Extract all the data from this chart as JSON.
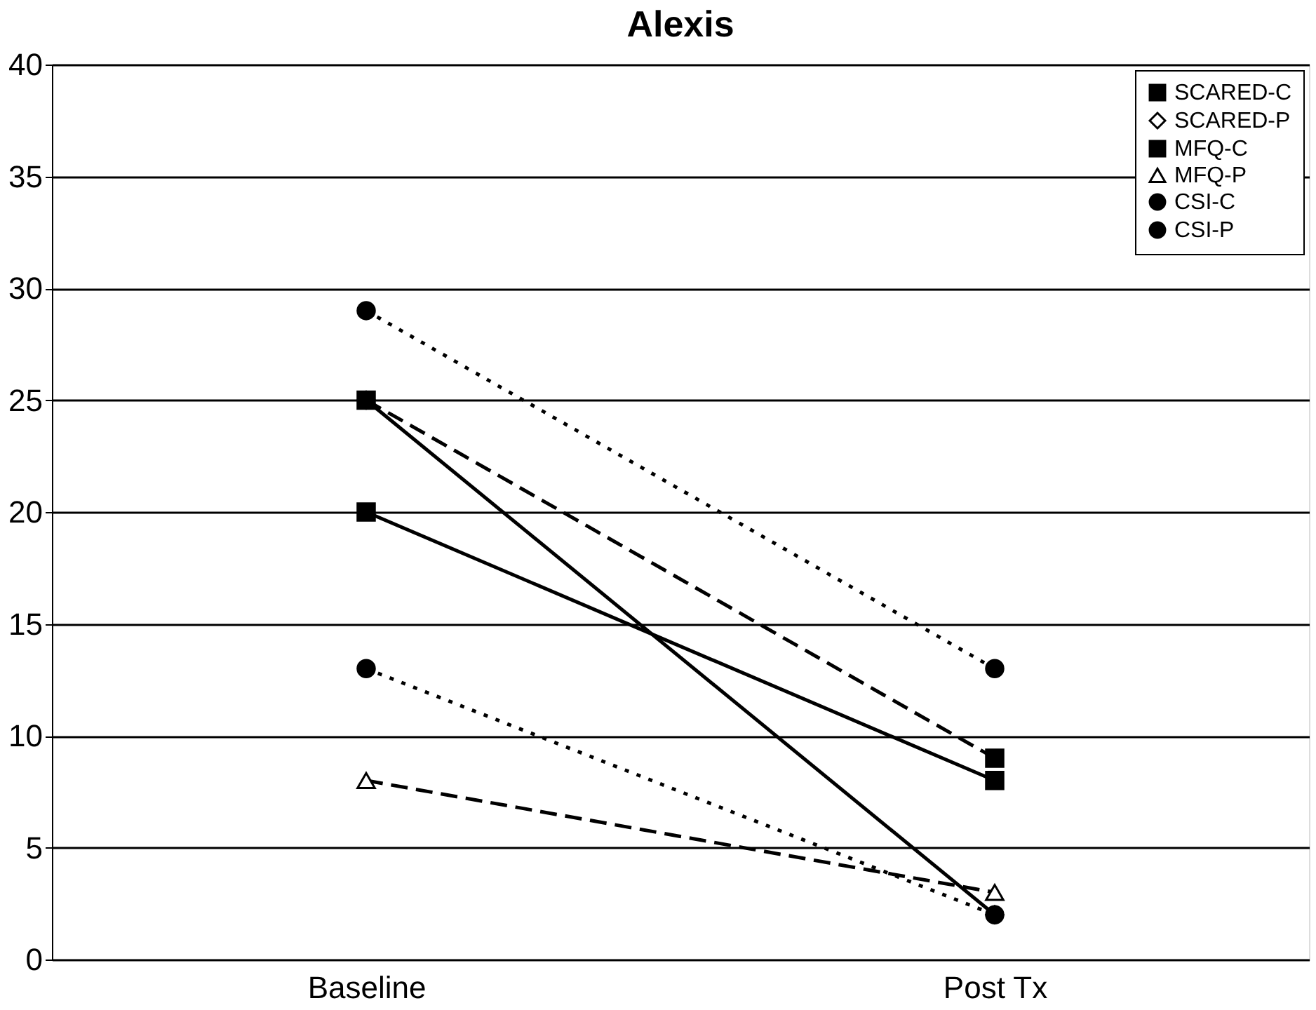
{
  "chart_data": {
    "type": "line",
    "title": "Alexis",
    "categories": [
      "Baseline",
      "Post Tx"
    ],
    "series": [
      {
        "name": "SCARED-C",
        "color": "#000000",
        "values": [
          20,
          8
        ],
        "marker": "square",
        "line_style": "solid"
      },
      {
        "name": "SCARED-P",
        "color": "#000000",
        "values": [
          25,
          2
        ],
        "marker": "diamond",
        "line_style": "solid"
      },
      {
        "name": "MFQ-C",
        "color": "#000000",
        "values": [
          25,
          9
        ],
        "marker": "square",
        "line_style": "dashed"
      },
      {
        "name": "MFQ-P",
        "color": "#000000",
        "values": [
          8,
          3
        ],
        "marker": "triangle",
        "line_style": "dashed"
      },
      {
        "name": "CSI-C",
        "color": "#000000",
        "values": [
          29,
          13
        ],
        "marker": "circle",
        "line_style": "dotted"
      },
      {
        "name": "CSI-P",
        "color": "#000000",
        "values": [
          13,
          2
        ],
        "marker": "circle",
        "line_style": "dotted"
      }
    ],
    "ylim": [
      0,
      40
    ],
    "yticks": [
      0,
      5,
      10,
      15,
      20,
      25,
      30,
      35,
      40
    ],
    "grid": "y",
    "legend": "top right"
  }
}
